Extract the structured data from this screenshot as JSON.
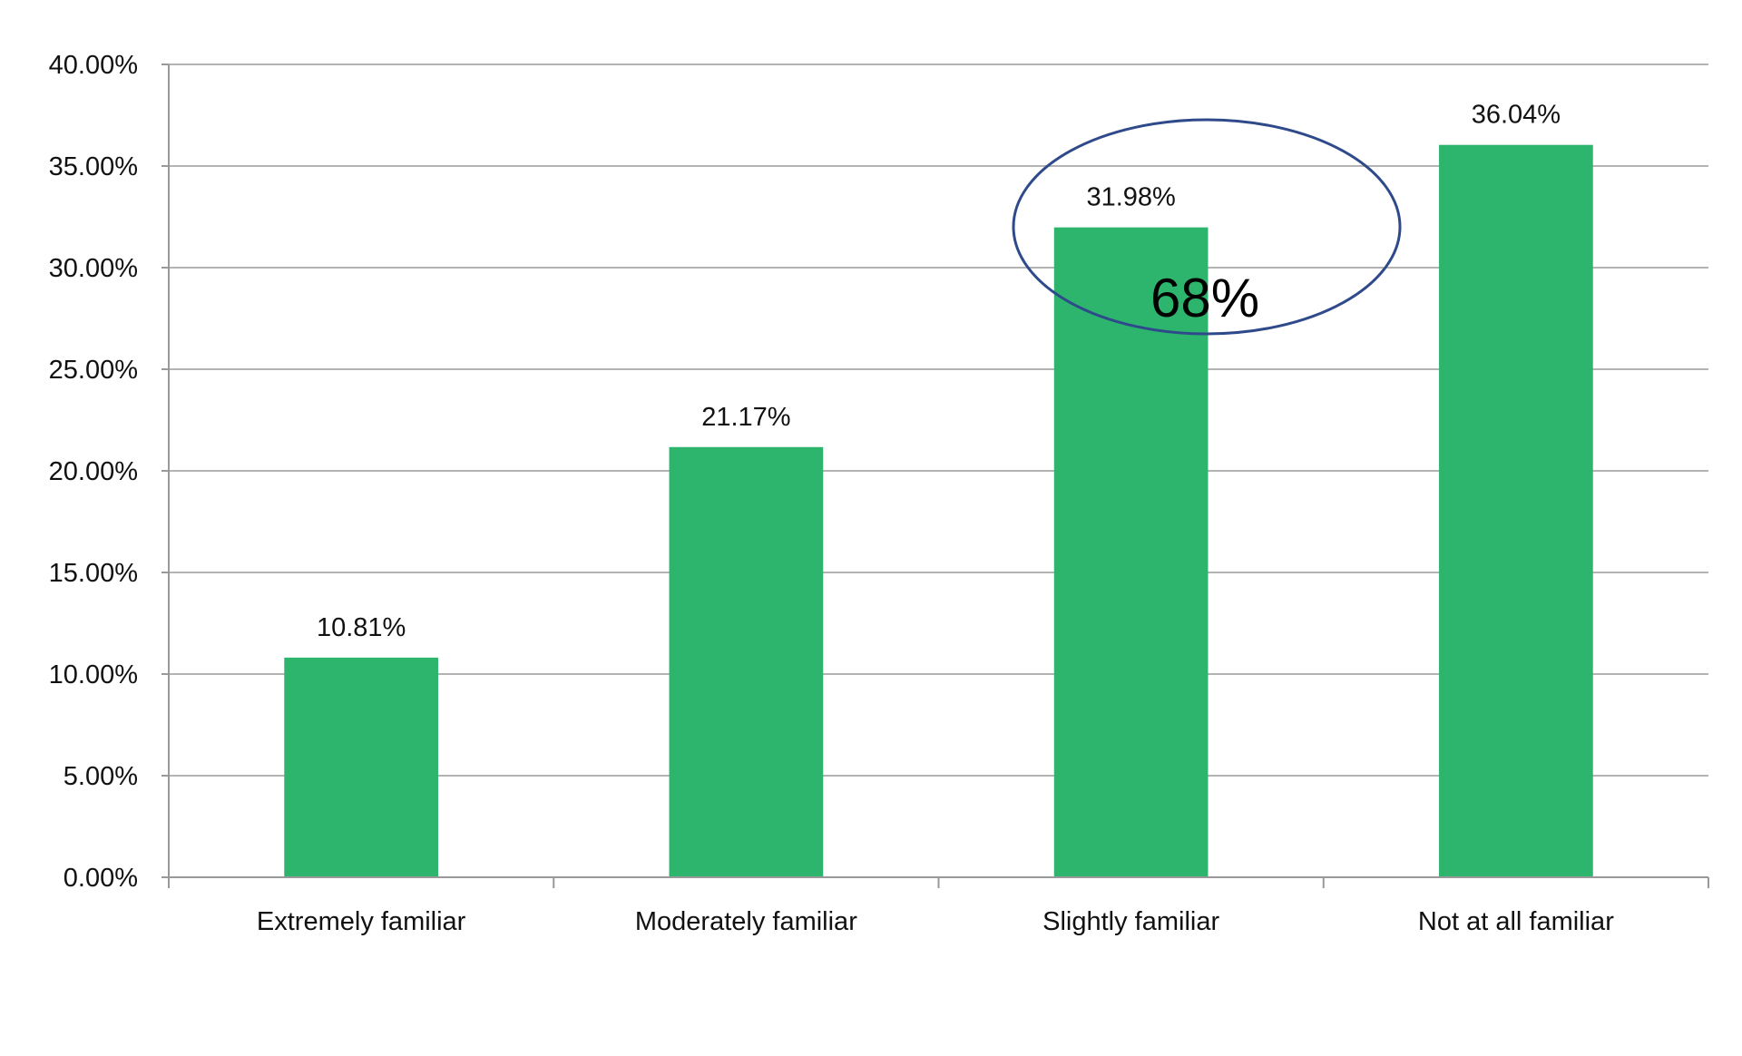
{
  "chart_data": {
    "type": "bar",
    "categories": [
      "Extremely familiar",
      "Moderately familiar",
      "Slightly familiar",
      "Not at all familiar"
    ],
    "values": [
      10.81,
      21.17,
      31.98,
      36.04
    ],
    "data_labels": [
      "10.81%",
      "21.17%",
      "31.98%",
      "36.04%"
    ],
    "title": "",
    "xlabel": "",
    "ylabel": "",
    "ylim": [
      0,
      40
    ],
    "yticks": [
      "0.00%",
      "5.00%",
      "10.00%",
      "15.00%",
      "20.00%",
      "25.00%",
      "30.00%",
      "35.00%",
      "40.00%"
    ],
    "grid": true,
    "legend": "none",
    "bar_color": "#2db56e",
    "annotation": {
      "text": "68%",
      "shape": "ellipse",
      "encloses": [
        "Slightly familiar",
        "Not at all familiar"
      ],
      "color": "#2f4a8a"
    }
  }
}
